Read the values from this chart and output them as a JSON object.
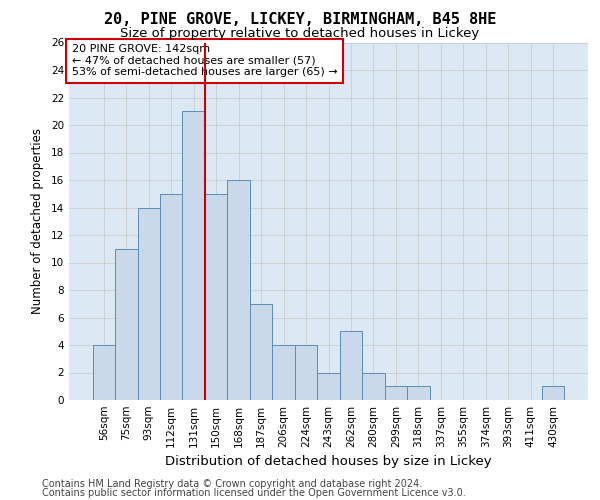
{
  "title_line1": "20, PINE GROVE, LICKEY, BIRMINGHAM, B45 8HE",
  "title_line2": "Size of property relative to detached houses in Lickey",
  "xlabel": "Distribution of detached houses by size in Lickey",
  "ylabel": "Number of detached properties",
  "footer_line1": "Contains HM Land Registry data © Crown copyright and database right 2024.",
  "footer_line2": "Contains public sector information licensed under the Open Government Licence v3.0.",
  "categories": [
    "56sqm",
    "75sqm",
    "93sqm",
    "112sqm",
    "131sqm",
    "150sqm",
    "168sqm",
    "187sqm",
    "206sqm",
    "224sqm",
    "243sqm",
    "262sqm",
    "280sqm",
    "299sqm",
    "318sqm",
    "337sqm",
    "355sqm",
    "374sqm",
    "393sqm",
    "411sqm",
    "430sqm"
  ],
  "values": [
    4,
    11,
    14,
    15,
    21,
    15,
    16,
    7,
    4,
    4,
    2,
    5,
    2,
    1,
    1,
    0,
    0,
    0,
    0,
    0,
    1
  ],
  "bar_color": "#c9d9ea",
  "bar_edge_color": "#5b8db8",
  "highlight_idx": 4,
  "highlight_color": "#cc0000",
  "ylim": [
    0,
    26
  ],
  "yticks": [
    0,
    2,
    4,
    6,
    8,
    10,
    12,
    14,
    16,
    18,
    20,
    22,
    24,
    26
  ],
  "grid_color": "#cccccc",
  "background_color": "#dce9f5",
  "annotation_text": "20 PINE GROVE: 142sqm\n← 47% of detached houses are smaller (57)\n53% of semi-detached houses are larger (65) →",
  "annotation_box_color": "#ffffff",
  "annotation_box_edge_color": "#cc0000",
  "annotation_fontsize": 8,
  "title1_fontsize": 11,
  "title2_fontsize": 9.5,
  "xlabel_fontsize": 9.5,
  "ylabel_fontsize": 8.5,
  "tick_fontsize": 7.5,
  "footer_fontsize": 7
}
